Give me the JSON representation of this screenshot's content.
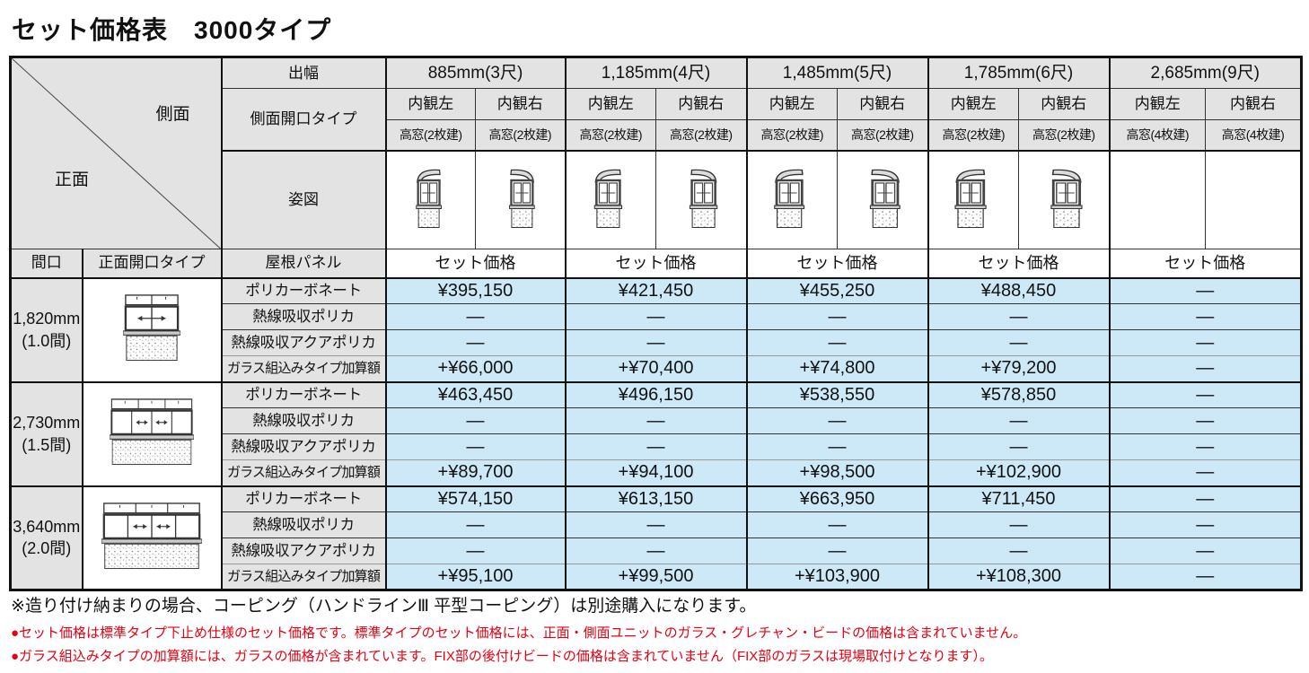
{
  "title": "セット価格表　3000タイプ",
  "table": {
    "corner": {
      "side": "側面",
      "front": "正面"
    },
    "header": {
      "depth_label": "出幅",
      "side_opening_label": "側面開口タイプ",
      "figure_label": "姿図",
      "maguchi_label": "間口",
      "front_opening_label": "正面開口タイプ",
      "roof_panel_label": "屋根パネル",
      "set_price_label": "セット価格",
      "columns": [
        {
          "depth": "885mm(3尺)",
          "left": "内観左",
          "right": "内観右",
          "left_sub": "高窓(2枚建)",
          "right_sub": "高窓(2枚建)"
        },
        {
          "depth": "1,185mm(4尺)",
          "left": "内観左",
          "right": "内観右",
          "left_sub": "高窓(2枚建)",
          "right_sub": "高窓(2枚建)"
        },
        {
          "depth": "1,485mm(5尺)",
          "left": "内観左",
          "right": "内観右",
          "left_sub": "高窓(2枚建)",
          "right_sub": "高窓(2枚建)"
        },
        {
          "depth": "1,785mm(6尺)",
          "left": "内観左",
          "right": "内観右",
          "left_sub": "高窓(2枚建)",
          "right_sub": "高窓(2枚建)"
        },
        {
          "depth": "2,685mm(9尺)",
          "left": "内観左",
          "right": "内観右",
          "left_sub": "高窓(4枚建)",
          "right_sub": "高窓(4枚建)"
        }
      ]
    },
    "panel_rows": [
      "ポリカーボネート",
      "熱線吸収ポリカ",
      "熱線吸収アクアポリカ",
      "ガラス組込みタイプ加算額"
    ],
    "row_groups": [
      {
        "maguchi": "1,820mm",
        "ken": "(1.0間)",
        "rows": [
          [
            "¥395,150",
            "¥421,450",
            "¥455,250",
            "¥488,450",
            "—"
          ],
          [
            "—",
            "—",
            "—",
            "—",
            "—"
          ],
          [
            "—",
            "—",
            "—",
            "—",
            "—"
          ],
          [
            "+¥66,000",
            "+¥70,400",
            "+¥74,800",
            "+¥79,200",
            "—"
          ]
        ]
      },
      {
        "maguchi": "2,730mm",
        "ken": "(1.5間)",
        "rows": [
          [
            "¥463,450",
            "¥496,150",
            "¥538,550",
            "¥578,850",
            "—"
          ],
          [
            "—",
            "—",
            "—",
            "—",
            "—"
          ],
          [
            "—",
            "—",
            "—",
            "—",
            "—"
          ],
          [
            "+¥89,700",
            "+¥94,100",
            "+¥98,500",
            "+¥102,900",
            "—"
          ]
        ]
      },
      {
        "maguchi": "3,640mm",
        "ken": "(2.0間)",
        "rows": [
          [
            "¥574,150",
            "¥613,150",
            "¥663,950",
            "¥711,450",
            "—"
          ],
          [
            "—",
            "—",
            "—",
            "—",
            "—"
          ],
          [
            "—",
            "—",
            "—",
            "—",
            "—"
          ],
          [
            "+¥95,100",
            "+¥99,500",
            "+¥103,900",
            "+¥108,300",
            "—"
          ]
        ]
      }
    ]
  },
  "notes": {
    "note1": "※造り付け納まりの場合、コーピング（ハンドラインⅢ 平型コーピング）は別途購入になります。",
    "note2": "●セット価格は標準タイプ下止め仕様のセット価格です。標準タイプのセット価格には、正面・側面ユニットのガラス・グレチャン・ビードの価格は含まれていません。",
    "note3": "●ガラス組込みタイプの加算額には、ガラスの価格が含まれています。FIX部の後付けビードの価格は含まれていません（FIX部のガラスは現場取付けとなります）。"
  },
  "colors": {
    "accent_blue": "#cde9f8",
    "header_gray": "#e3e3e3",
    "note_red": "#e60012",
    "border_black": "#111111"
  }
}
